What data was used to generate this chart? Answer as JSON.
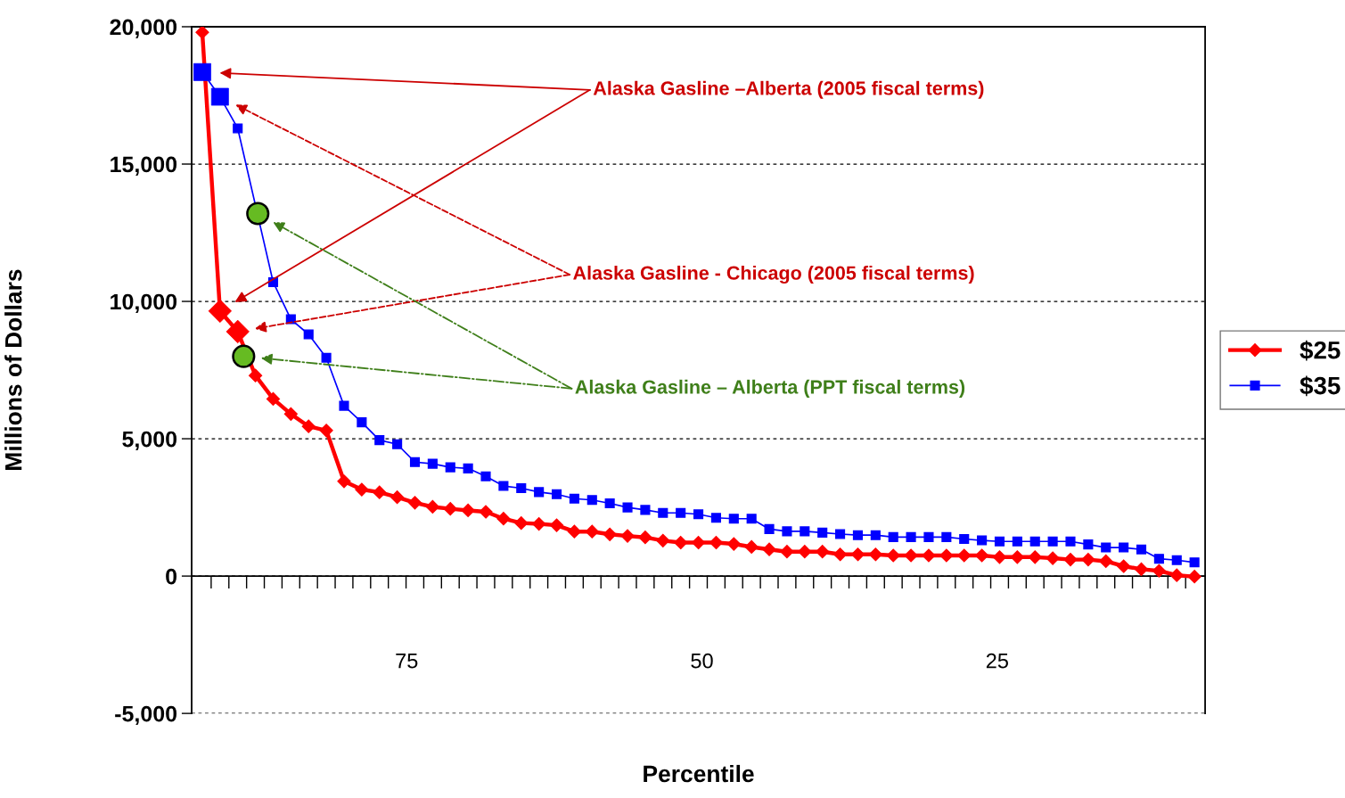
{
  "chart_data": {
    "type": "line",
    "xlabel": "Percentile",
    "ylabel": "Millions of Dollars",
    "xlim": [
      93.2,
      7.4
    ],
    "xticks": [
      75,
      50,
      25
    ],
    "ylim": [
      -5000,
      20000
    ],
    "yticks": [
      {
        "value": -5000,
        "label": "-5,000"
      },
      0,
      {
        "value": 5000,
        "label": "5,000"
      },
      {
        "value": 10000,
        "label": "10,000"
      },
      {
        "value": 15000,
        "label": "15,000"
      },
      {
        "value": 20000,
        "label": "20,000"
      }
    ],
    "grid": "y",
    "legend": "right",
    "x": [
      92.3,
      90.8,
      89.3,
      87.8,
      86.3,
      84.8,
      83.3,
      81.8,
      80.3,
      78.8,
      77.3,
      75.8,
      74.3,
      72.8,
      71.3,
      69.8,
      68.3,
      66.8,
      65.3,
      63.8,
      62.3,
      60.8,
      59.3,
      57.8,
      56.3,
      54.8,
      53.3,
      51.8,
      50.3,
      48.8,
      47.3,
      45.8,
      44.3,
      42.8,
      41.3,
      39.8,
      38.3,
      36.8,
      35.3,
      33.8,
      32.3,
      30.8,
      29.3,
      27.8,
      26.3,
      24.8,
      23.3,
      21.8,
      20.3,
      18.8,
      17.3,
      15.8,
      14.3,
      12.8,
      11.3,
      9.8,
      8.3
    ],
    "series": [
      {
        "name": "$25",
        "color": "#ff0000",
        "marker": "diamond",
        "values": [
          19800,
          9650,
          8900,
          7300,
          6450,
          5900,
          5450,
          5300,
          3450,
          3150,
          3050,
          2870,
          2670,
          2520,
          2450,
          2390,
          2340,
          2090,
          1930,
          1900,
          1850,
          1620,
          1620,
          1520,
          1460,
          1410,
          1290,
          1220,
          1220,
          1220,
          1170,
          1060,
          970,
          890,
          890,
          890,
          790,
          790,
          790,
          750,
          750,
          750,
          750,
          750,
          750,
          690,
          690,
          690,
          650,
          600,
          600,
          540,
          360,
          250,
          190,
          30,
          -20
        ]
      },
      {
        "name": "$35",
        "color": "#0000ff",
        "marker": "square",
        "values": [
          18350,
          17450,
          16300,
          null,
          10700,
          9350,
          8800,
          7950,
          6200,
          5600,
          4950,
          4800,
          4150,
          4090,
          3960,
          3920,
          3630,
          3280,
          3200,
          3060,
          2980,
          2820,
          2770,
          2650,
          2500,
          2410,
          2300,
          2300,
          2250,
          2120,
          2090,
          2090,
          1710,
          1630,
          1630,
          1580,
          1530,
          1490,
          1490,
          1420,
          1420,
          1420,
          1420,
          1350,
          1300,
          1260,
          1260,
          1260,
          1260,
          1260,
          1150,
          1040,
          1040,
          970,
          630,
          580,
          500
        ]
      },
      {
        "type": "scatter",
        "color": "#ff0000",
        "marker": "diamond",
        "x": [
          90.8,
          89.3
        ],
        "values": [
          9650,
          8900
        ]
      },
      {
        "type": "scatter",
        "color": "#0000ff",
        "marker": "square",
        "x": [
          92.3,
          90.8
        ],
        "values": [
          18350,
          17450
        ]
      },
      {
        "type": "scatter",
        "color": "#66bb22",
        "marker": "circle",
        "x": [
          88.8,
          87.6
        ],
        "values": [
          8000,
          13200
        ]
      }
    ],
    "annotations": [
      "Alaska Gasline –Alberta (2005 fiscal terms)",
      "Alaska Gasline - Chicago (2005 fiscal terms)",
      "Alaska Gasline – Alberta (PPT fiscal terms)"
    ]
  }
}
